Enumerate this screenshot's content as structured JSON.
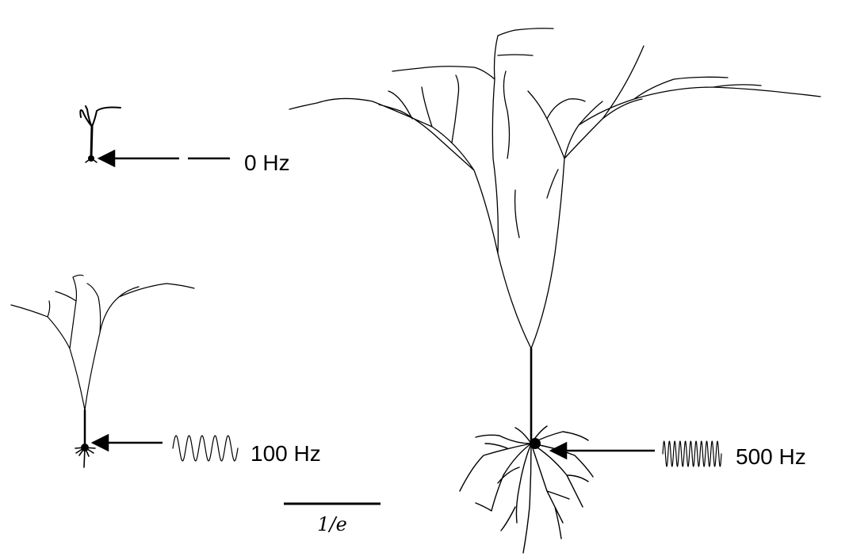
{
  "diagram": {
    "stimuli": [
      {
        "id": "dc",
        "label": "0 Hz",
        "waveform": "dc-line"
      },
      {
        "id": "f100",
        "label": "100 Hz",
        "waveform": "sine",
        "cycles": 5
      },
      {
        "id": "f500",
        "label": "500 Hz",
        "waveform": "sine",
        "cycles": 11
      }
    ],
    "scale_bar": {
      "label": "1/e"
    },
    "colors": {
      "ink": "#000000",
      "background": "#ffffff"
    }
  }
}
